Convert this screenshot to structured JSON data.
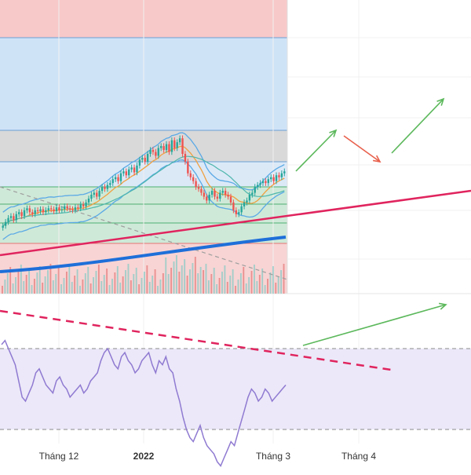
{
  "chart_data": {
    "type": "line",
    "description_panels": [
      "price",
      "rsi"
    ],
    "x_axis": {
      "tick_labels": [
        "Tháng 12",
        "2022",
        "Tháng 3",
        "Tháng 4"
      ]
    },
    "price_panel": {
      "candles_close": [
        30,
        34,
        38,
        40,
        36,
        42,
        44,
        40,
        46,
        48,
        44,
        42,
        46,
        45,
        47,
        44,
        46,
        48,
        47,
        45,
        49,
        46,
        47,
        50,
        48,
        47,
        46,
        49,
        48,
        52,
        50,
        54,
        58,
        62,
        64,
        60,
        66,
        70,
        68,
        72,
        74,
        78,
        80,
        76,
        84,
        86,
        82,
        88,
        90,
        85,
        92,
        98,
        100,
        96,
        104,
        108,
        106,
        102,
        110,
        112,
        108,
        114,
        106,
        118,
        110,
        116,
        120,
        104,
        96,
        84,
        80,
        76,
        70,
        68,
        64,
        60,
        56,
        62,
        66,
        60,
        58,
        64,
        66,
        62,
        60,
        54,
        46,
        42,
        44,
        50,
        54,
        56,
        62,
        64,
        70,
        72,
        74,
        76,
        74,
        78,
        80,
        76,
        82,
        80,
        84,
        86
      ],
      "bollinger_upper_label": "",
      "zones_colors": {
        "resistance_red": "#f8c9c9",
        "blue_zone": "#cfe3f7",
        "gray_zone": "#d9d9d9",
        "green_zone": "#cfe9d8",
        "support_red": "#f8d4d4"
      },
      "trendline_color": "#e0245e",
      "long_ma_color": "#1e6fd9"
    },
    "rsi_panel": {
      "values": [
        72,
        74,
        70,
        66,
        62,
        54,
        46,
        44,
        48,
        52,
        58,
        60,
        56,
        52,
        50,
        48,
        54,
        56,
        52,
        50,
        46,
        48,
        50,
        52,
        48,
        50,
        54,
        56,
        58,
        64,
        68,
        70,
        66,
        62,
        60,
        66,
        68,
        64,
        62,
        58,
        60,
        64,
        66,
        68,
        62,
        58,
        64,
        62,
        66,
        60,
        58,
        50,
        44,
        36,
        30,
        26,
        24,
        28,
        32,
        26,
        22,
        20,
        18,
        14,
        12,
        16,
        20,
        24,
        22,
        28,
        34,
        40,
        46,
        50,
        48,
        44,
        46,
        50,
        48,
        44,
        46,
        48,
        50,
        52
      ],
      "upper_band": 70,
      "lower_band": 30,
      "line_color": "#8f7ad1",
      "band_fill": "#ece8f9"
    },
    "annotations": {
      "arrow_up_color": "#5cb85c",
      "arrow_down_color": "#e8604c"
    }
  }
}
